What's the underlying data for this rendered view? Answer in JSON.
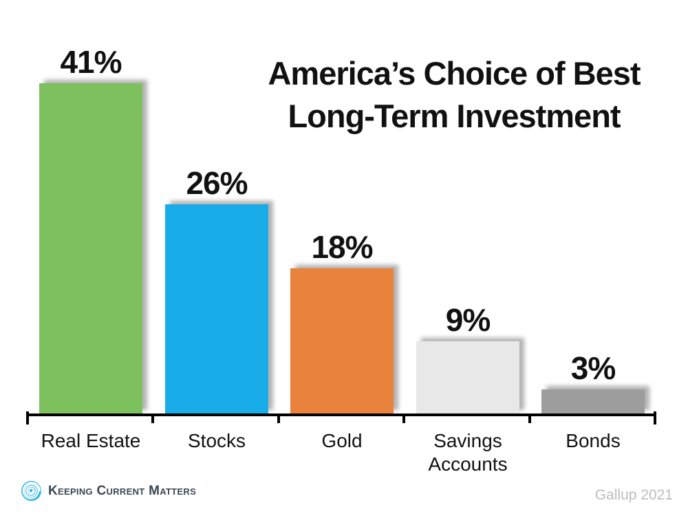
{
  "title": {
    "line1": "America’s Choice of Best",
    "line2": "Long-Term Investment"
  },
  "chart_data": {
    "type": "bar",
    "title": "America’s Choice of Best Long-Term Investment",
    "categories": [
      "Real Estate",
      "Stocks",
      "Gold",
      "Savings Accounts",
      "Bonds"
    ],
    "values": [
      41,
      26,
      18,
      9,
      3
    ],
    "value_labels": [
      "41%",
      "26%",
      "18%",
      "9%",
      "3%"
    ],
    "bar_colors": [
      "#7CC15E",
      "#18ACE8",
      "#E9823D",
      "#E8E8E8",
      "#9D9D9D"
    ],
    "unit": "percent",
    "ylim": [
      0,
      45
    ],
    "grid": false,
    "legend": false,
    "source": "Gallup 2021"
  },
  "footer": {
    "logo_text": "Keeping Current Matters",
    "source_label": "Gallup 2021"
  },
  "icons": {
    "logo": "kcm-swirl-icon"
  },
  "colors": {
    "axis": "#000000",
    "title_text": "#111111",
    "logo_cyan": "#1FB1E9",
    "logo_text": "#3A4651",
    "source_text": "#BDBDBD"
  }
}
